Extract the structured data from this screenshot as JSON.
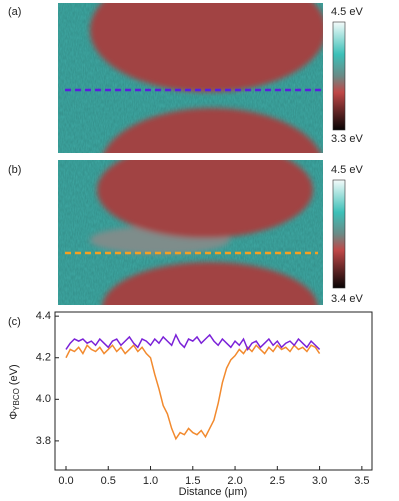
{
  "panels": {
    "a": {
      "label": "(a)",
      "colorbar_top": "4.5 eV",
      "colorbar_bottom": "3.3 eV"
    },
    "b": {
      "label": "(b)",
      "colorbar_top": "4.5 eV",
      "colorbar_bottom": "3.4 eV"
    },
    "c": {
      "label": "(c)"
    }
  },
  "chart_data": {
    "type": "line",
    "xlabel": "Distance (μm)",
    "ylabel": {
      "symbol": "Φ",
      "subscript": "YBCO",
      "unit": "(eV)"
    },
    "xlim": [
      -0.13,
      3.62
    ],
    "ylim": [
      3.66,
      4.42
    ],
    "xticks": [
      {
        "value": 0,
        "label": "0.0"
      },
      0.5,
      {
        "value": 1,
        "label": "1.0"
      },
      1.5,
      {
        "value": 2,
        "label": "2.0"
      },
      2.5,
      {
        "value": 3,
        "label": "3.0"
      },
      3.5
    ],
    "yticks": [
      3.8,
      {
        "value": 4,
        "label": "4.0"
      },
      4.2,
      4.4
    ],
    "x": [
      0,
      0.05,
      0.1,
      0.15,
      0.2,
      0.25,
      0.3,
      0.35,
      0.4,
      0.45,
      0.5,
      0.55,
      0.6,
      0.65,
      0.7,
      0.75,
      0.8,
      0.85,
      0.9,
      0.95,
      1,
      1.05,
      1.1,
      1.15,
      1.2,
      1.25,
      1.3,
      1.35,
      1.4,
      1.45,
      1.5,
      1.55,
      1.6,
      1.65,
      1.7,
      1.75,
      1.8,
      1.85,
      1.9,
      1.95,
      2,
      2.05,
      2.1,
      2.15,
      2.2,
      2.25,
      2.3,
      2.35,
      2.4,
      2.45,
      2.5,
      2.55,
      2.6,
      2.65,
      2.7,
      2.75,
      2.8,
      2.85,
      2.9,
      2.95,
      3
    ],
    "series": [
      {
        "color": "#7b22d8",
        "values": [
          4.24,
          4.27,
          4.29,
          4.28,
          4.29,
          4.27,
          4.28,
          4.26,
          4.29,
          4.27,
          4.25,
          4.28,
          4.29,
          4.26,
          4.28,
          4.3,
          4.27,
          4.25,
          4.29,
          4.28,
          4.26,
          4.29,
          4.27,
          4.3,
          4.28,
          4.26,
          4.31,
          4.27,
          4.25,
          4.29,
          4.28,
          4.3,
          4.27,
          4.29,
          4.31,
          4.28,
          4.26,
          4.29,
          4.27,
          4.25,
          4.28,
          4.26,
          4.29,
          4.24,
          4.27,
          4.28,
          4.25,
          4.27,
          4.29,
          4.26,
          4.28,
          4.25,
          4.27,
          4.28,
          4.26,
          4.29,
          4.27,
          4.25,
          4.28,
          4.26,
          4.24
        ]
      },
      {
        "color": "#f28a2e",
        "values": [
          4.2,
          4.24,
          4.23,
          4.25,
          4.22,
          4.26,
          4.24,
          4.23,
          4.25,
          4.22,
          4.24,
          4.26,
          4.23,
          4.25,
          4.22,
          4.24,
          4.26,
          4.23,
          4.25,
          4.22,
          4.2,
          4.12,
          4.05,
          3.97,
          3.93,
          3.86,
          3.81,
          3.84,
          3.83,
          3.86,
          3.84,
          3.83,
          3.85,
          3.82,
          3.86,
          3.9,
          3.98,
          4.08,
          4.15,
          4.19,
          4.21,
          4.24,
          4.22,
          4.25,
          4.23,
          4.26,
          4.24,
          4.22,
          4.25,
          4.23,
          4.26,
          4.24,
          4.25,
          4.23,
          4.26,
          4.24,
          4.25,
          4.23,
          4.26,
          4.25,
          4.22
        ]
      }
    ]
  }
}
